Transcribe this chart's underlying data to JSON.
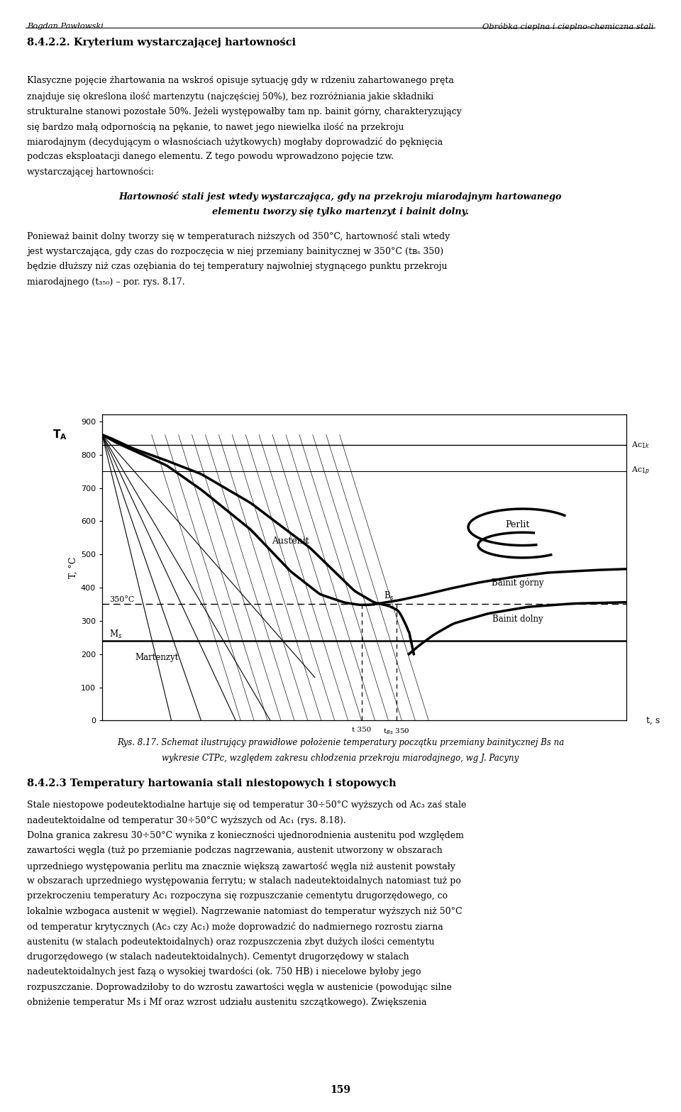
{
  "header_left": "Bogdan Pawłowski",
  "header_right": "Obróbka cieplna i cieplno-chemiczna stali",
  "section_title": "8.4.2.2. Kryterium wystarczającej hartowności",
  "body1_lines": [
    "Klasyczne pojęcie źhartowania na wskroś opisuje sytuację gdy w rdzeniu zahartowanego pręta",
    "znajduje się określona ilość martenzytu (najczęściej 50%), bez rozróżniania jakie składniki",
    "strukturalne stanowi pozostałe 50%. Jeżeli występowałby tam np. bainit górny, charakteryzujący",
    "się bardzo małą odpornością na pękanie, to nawet jego niewielka ilość na przekroju",
    "miarodajnym (decydującym o własnościach użytkowych) mogłaby doprowadzić do pęknięcia",
    "podczas eksploatacji danego elementu. Z tego powodu wprowadzono pojęcie tzw.",
    "wystarczającej hartowności:"
  ],
  "italic_line1": "Hartowność stali jest wtedy wystarczająca, gdy na przekroju miarodajnym hartowanego",
  "italic_line2": "elementu tworzy się tylko martenzyt i bainit dolny.",
  "body2_lines": [
    "Ponieważ bainit dolny tworzy się w temperaturach niższych od 350°C, hartowność stali wtedy",
    "jest wystarczająca, gdy czas do rozpoczęcia w niej przemiany bainitycznej w 350°C (tʙₛ 350)",
    "będzie dłuższy niż czas ozębiania do tej temperatury najwolniej stygnącego punktu przekroju",
    "miarodajnego (t₃₅₀) – por. rys. 8.17."
  ],
  "fig_caption1": "Rys. 8.17. Schemat ilustrujący prawidłowe położenie temperatury początku przemiany bainitycznej Bs na",
  "fig_caption2": "wykresie CTPc, względem zakresu chłodzenia przekroju miarodajnego, wg J. Pacyny",
  "section2_title": "8.4.2.3 Temperatury hartowania stali niestopowych i stopowych",
  "body3_lines": [
    "Stale niestopowe podeutektodialne hartuje się od temperatur 30÷50°C wyższych od Ac₃ zaś stale",
    "nadeutektoidalne od temperatur 30÷50°C wyższych od Ac₁ (rys. 8.18).",
    "Dolna granica zakresu 30÷50°C wynika z konieczności ujednorodnienia austenitu pod względem",
    "zawartości węgla (tuż po przemianie podczas nagrzewania, austenit utworzony w obszarach",
    "uprzedniego występowania perlitu ma znacznie większą zawartość węgla niż austenit powstały",
    "w obszarach uprzedniego występowania ferrytu; w stalach nadeutektoidalnych natomiast tuż po",
    "przekroczeniu temperatury Ac₁ rozpoczyna się rozpuszczanie cementytu drugorzędowego, co",
    "lokalnie wzbogaca austenit w węgiel). Nagrzewanie natomiast do temperatur wyższych niż 50°C",
    "od temperatur krytycznych (Ac₃ czy Ac₁) może doprowadzić do nadmiernego rozrostu ziarna",
    "austenitu (w stalach podeutektoidalnych) oraz rozpuszczenia zbyt dużych ilości cementytu",
    "drugorzędowego (w stalach nadeutektoidalnych). Cementyt drugorzędowy w stalach",
    "nadeutektoidalnych jest fazą o wysokiej twardości (ok. 750 HB) i niecelowe byłoby jego",
    "rozpuszczanie. Doprowadziłoby to do wzrostu zawartości węgla w austenicie (powodując silne",
    "obniżenie temperatur Ms i Mf oraz wzrost udziału austenitu szczątkowego). Zwiększenia"
  ],
  "page_number": "159",
  "Ac1k": 830,
  "Ac1p": 750,
  "Ms": 240,
  "T_A": 860,
  "ylim": [
    0,
    920
  ],
  "bg_color": "#ffffff"
}
